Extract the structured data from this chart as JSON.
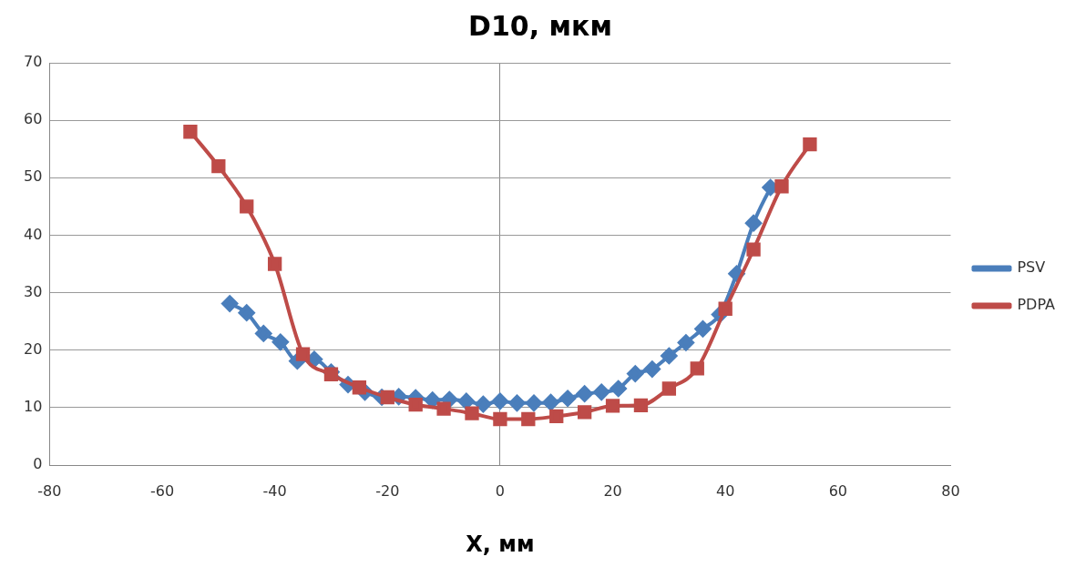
{
  "chart_data": {
    "type": "line",
    "title": "D10, мкм",
    "xlabel": "X, мм",
    "xlim": [
      -80,
      80
    ],
    "xticks": [
      -80,
      -60,
      -40,
      -20,
      0,
      20,
      40,
      60,
      80
    ],
    "ylim": [
      0,
      70
    ],
    "yticks": [
      0,
      10,
      20,
      30,
      40,
      50,
      60,
      70
    ],
    "grid": "y",
    "legend": "right",
    "line_style": "solid",
    "series": [
      {
        "name": "PSV",
        "color": "#4a7ebb",
        "marker": "diamond",
        "x": [
          -48,
          -45,
          -42,
          -39,
          -36,
          -33,
          -30,
          -27,
          -24,
          -21,
          -18,
          -15,
          -12,
          -9,
          -6,
          -3,
          0,
          3,
          6,
          9,
          12,
          15,
          18,
          21,
          24,
          27,
          30,
          33,
          36,
          39,
          42,
          45,
          48
        ],
        "values": [
          28.1,
          26.5,
          22.9,
          21.4,
          18.1,
          18.4,
          16.2,
          14,
          12.7,
          11.8,
          11.9,
          11.7,
          11.3,
          11.4,
          11.1,
          10.6,
          11.1,
          10.8,
          10.8,
          10.9,
          11.6,
          12.4,
          12.7,
          13.3,
          15.9,
          16.7,
          19,
          21.3,
          23.7,
          26.2,
          33.3,
          42.1,
          48.3
        ]
      },
      {
        "name": "PDPA",
        "color": "#be4b48",
        "marker": "square",
        "x": [
          -55,
          -50,
          -45,
          -40,
          -35,
          -30,
          -25,
          -20,
          -15,
          -10,
          -5,
          0,
          5,
          10,
          15,
          20,
          25,
          30,
          35,
          40,
          45,
          50,
          55
        ],
        "values": [
          58,
          52,
          45,
          35,
          19.3,
          15.8,
          13.5,
          11.8,
          10.5,
          9.8,
          9,
          8,
          8,
          8.5,
          9.2,
          10.3,
          10.4,
          13.3,
          16.8,
          27.2,
          37.5,
          48.5,
          55.8
        ]
      }
    ]
  }
}
